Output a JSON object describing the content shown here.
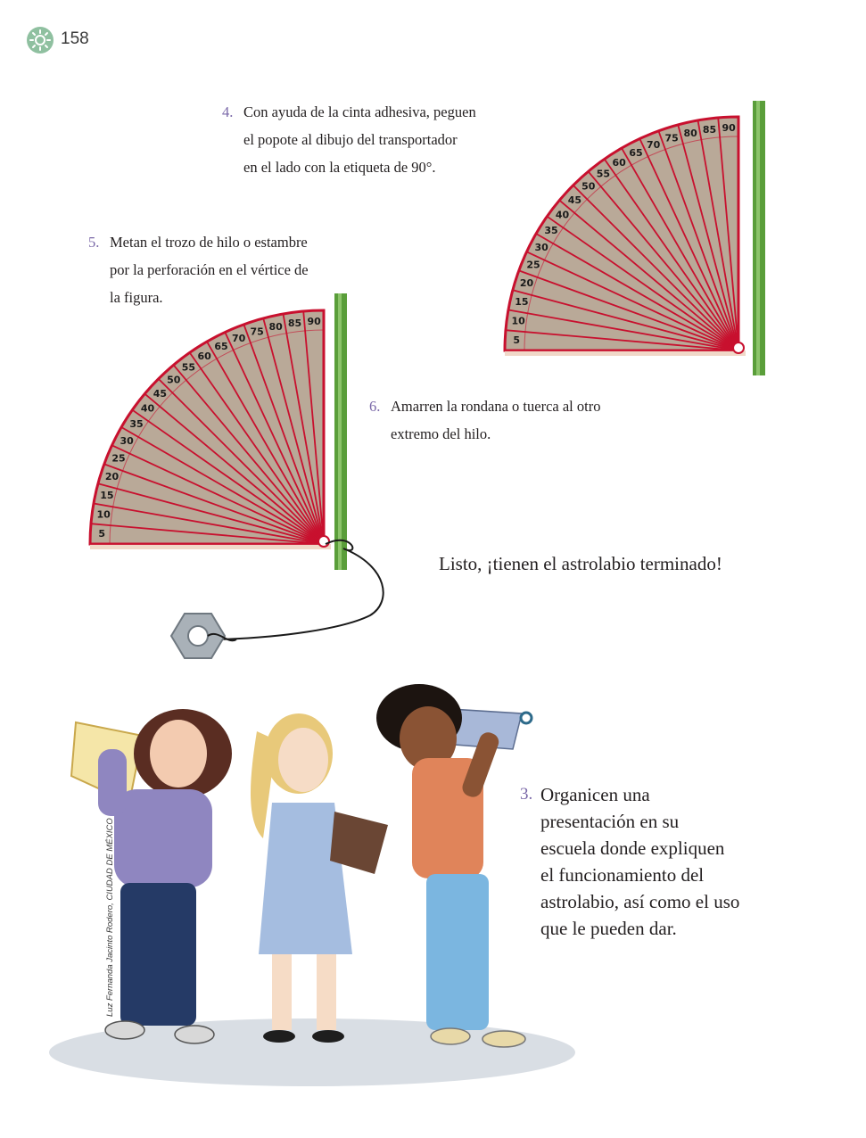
{
  "page_number": "158",
  "steps": {
    "step4": {
      "number": "4.",
      "lines": [
        "Con ayuda de la cinta adhesiva, peguen",
        "el popote al dibujo del transportador",
        "en el lado con la etiqueta de 90°."
      ]
    },
    "step5": {
      "number": "5.",
      "lines": [
        "Metan el trozo de hilo o estambre",
        "por la perforación en el vértice de",
        "la figura."
      ]
    },
    "step6": {
      "number": "6.",
      "lines": [
        "Amarren la rondana o tuerca al otro",
        "extremo del hilo."
      ]
    }
  },
  "done_text": "Listo, ¡tienen el astrolabio terminado!",
  "final_step": {
    "number": "3.",
    "lines": [
      "Organicen una",
      "presentación en su",
      "escuela donde expliquen",
      "el funcionamiento del",
      "astrolabio, así como el uso",
      "que le pueden dar."
    ]
  },
  "protractor_labels": [
    "5",
    "10",
    "15",
    "20",
    "25",
    "30",
    "35",
    "40",
    "45",
    "50",
    "55",
    "60",
    "65",
    "70",
    "75",
    "80",
    "85",
    "90"
  ],
  "illustration_credit": "Luz Fernanda Jacinto Rodero, CIUDAD DE MÉXICO",
  "colors": {
    "protractor_red": "#c8102e",
    "cardboard": "#b9a998",
    "straw_green": "#5a9e3a",
    "number_purple": "#7a68a8"
  }
}
